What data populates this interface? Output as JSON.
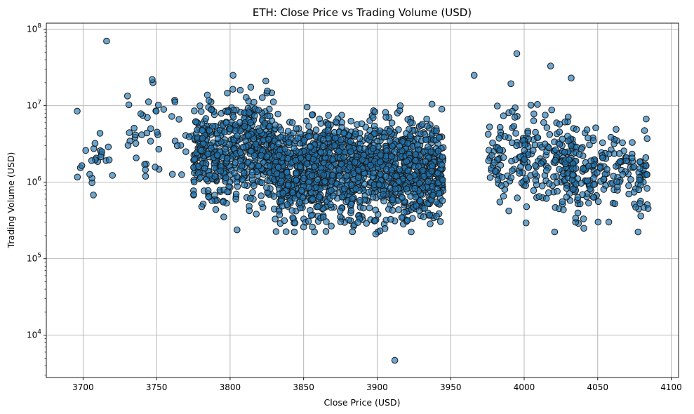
{
  "chart_data": {
    "type": "scatter",
    "title": "ETH: Close Price vs Trading Volume (USD)",
    "xlabel": "Close Price (USD)",
    "ylabel": "Trading Volume (USD)",
    "xlim": [
      3675,
      4105
    ],
    "ylim": [
      2800,
      120000000
    ],
    "yscale": "log",
    "grid": true,
    "x_ticks": [
      3700,
      3750,
      3800,
      3850,
      3900,
      3950,
      4000,
      4050,
      4100
    ],
    "y_ticks": [
      {
        "value": 10000,
        "base": "10",
        "exp": "4"
      },
      {
        "value": 100000,
        "base": "10",
        "exp": "5"
      },
      {
        "value": 1000000,
        "base": "10",
        "exp": "6"
      },
      {
        "value": 10000000,
        "base": "10",
        "exp": "7"
      },
      {
        "value": 100000000,
        "base": "10",
        "exp": "8"
      }
    ],
    "marker_color": "#1f77b4",
    "marker_edge_color": "#000000",
    "marker_alpha": 0.65,
    "notable_points": [
      {
        "x": 3716,
        "y": 70000000
      },
      {
        "x": 3912,
        "y": 4700
      },
      {
        "x": 3995,
        "y": 48000000
      },
      {
        "x": 4018,
        "y": 33000000
      },
      {
        "x": 3966,
        "y": 25000000
      },
      {
        "x": 3899,
        "y": 210000
      },
      {
        "x": 3696,
        "y": 8500000
      },
      {
        "x": 3707,
        "y": 680000
      },
      {
        "x": 3747,
        "y": 22000000
      },
      {
        "x": 3802,
        "y": 25000000
      },
      {
        "x": 3850,
        "y": 260000
      },
      {
        "x": 4035,
        "y": 300000
      },
      {
        "x": 4035,
        "y": 340000
      },
      {
        "x": 4032,
        "y": 23000000
      },
      {
        "x": 4083,
        "y": 6700000
      }
    ],
    "clusters": [
      {
        "x_min": 3696,
        "x_max": 3720,
        "log10_center": 6.25,
        "log10_spread": 0.25,
        "n": 22
      },
      {
        "x_min": 3730,
        "x_max": 3775,
        "log10_center": 6.6,
        "log10_spread": 0.3,
        "n": 45
      },
      {
        "x_min": 3775,
        "x_max": 3830,
        "log10_center": 6.42,
        "log10_spread": 0.34,
        "n": 560
      },
      {
        "x_min": 3830,
        "x_max": 3945,
        "log10_center": 6.18,
        "log10_spread": 0.32,
        "n": 1500
      },
      {
        "x_min": 3975,
        "x_max": 4035,
        "log10_center": 6.35,
        "log10_spread": 0.33,
        "n": 200
      },
      {
        "x_min": 4020,
        "x_max": 4085,
        "log10_center": 6.15,
        "log10_spread": 0.28,
        "n": 230
      }
    ]
  }
}
